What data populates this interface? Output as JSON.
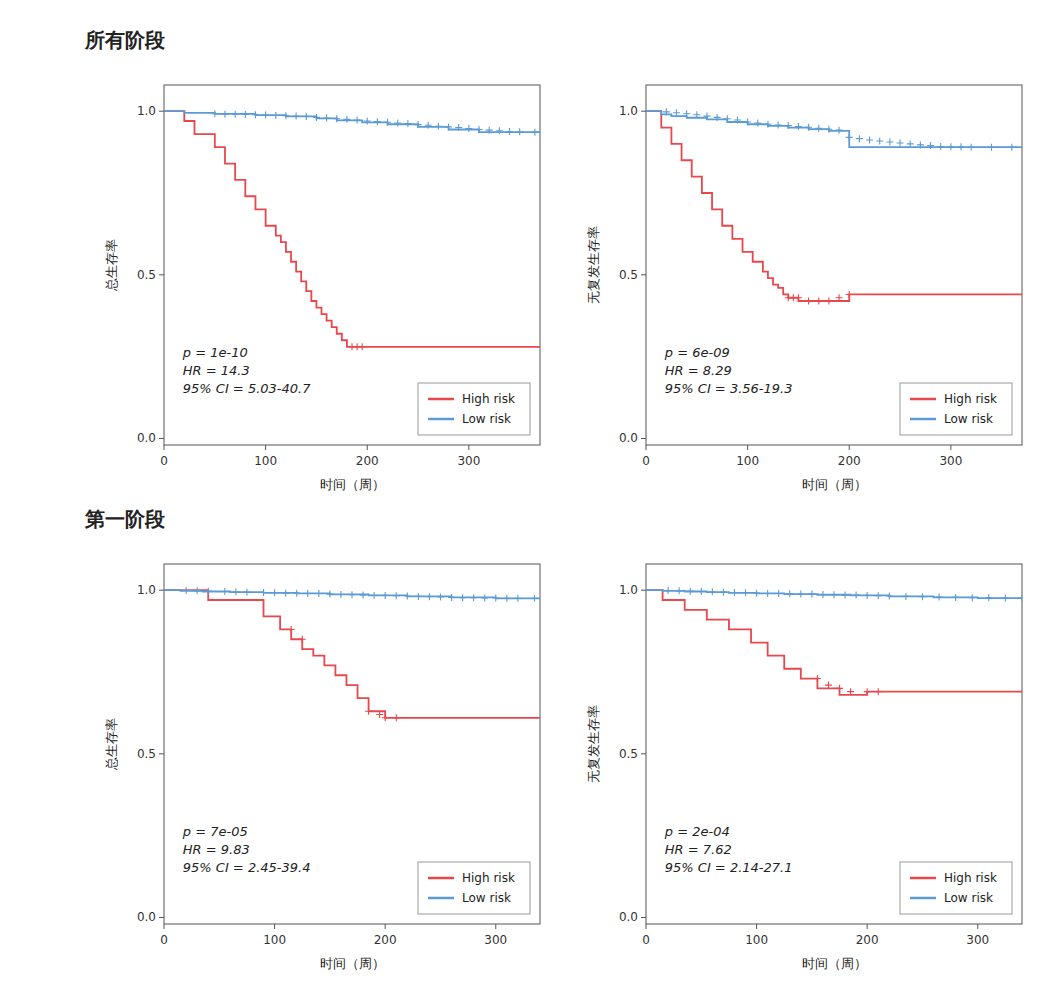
{
  "chart_data": [
    {
      "type": "step",
      "title": "所有阶段",
      "xlabel": "时间（周）",
      "ylabel": "总生存率",
      "annotations": [
        "p = 1e-10",
        "HR = 14.3",
        "95% CI = 5.03-40.7"
      ],
      "xlim": [
        0,
        370
      ],
      "ylim": [
        -0.02,
        1.08
      ],
      "xticks": [
        0,
        100,
        200,
        300
      ],
      "yticks": [
        {
          "value": 0.0,
          "label": "0.0"
        },
        0.5,
        {
          "value": 1.0,
          "label": "1.0"
        }
      ],
      "grid": false,
      "legend": "lower right",
      "series": [
        {
          "name": "High risk",
          "color": "#E8474C",
          "x": [
            0,
            20,
            20,
            30,
            30,
            50,
            50,
            60,
            60,
            70,
            70,
            80,
            80,
            90,
            90,
            100,
            100,
            110,
            110,
            115,
            115,
            120,
            120,
            125,
            125,
            130,
            130,
            135,
            135,
            140,
            140,
            145,
            145,
            150,
            150,
            155,
            155,
            160,
            160,
            165,
            165,
            170,
            170,
            175,
            175,
            180,
            180,
            185,
            185,
            190,
            190,
            200,
            200,
            370
          ],
          "values": [
            1.0,
            1.0,
            0.97,
            0.97,
            0.93,
            0.93,
            0.89,
            0.89,
            0.84,
            0.84,
            0.79,
            0.79,
            0.74,
            0.74,
            0.7,
            0.7,
            0.65,
            0.65,
            0.62,
            0.62,
            0.6,
            0.6,
            0.57,
            0.57,
            0.54,
            0.54,
            0.51,
            0.51,
            0.48,
            0.48,
            0.45,
            0.45,
            0.42,
            0.42,
            0.4,
            0.4,
            0.38,
            0.38,
            0.36,
            0.36,
            0.34,
            0.34,
            0.32,
            0.32,
            0.3,
            0.3,
            0.28,
            0.28,
            0.28,
            0.28,
            0.28,
            0.28,
            0.28,
            0.28
          ],
          "censor_x": [
            185,
            190,
            195
          ],
          "censor_values": [
            0.28,
            0.28,
            0.28
          ]
        },
        {
          "name": "Low risk",
          "color": "#5B9BD5",
          "x": [
            0,
            20,
            20,
            50,
            50,
            90,
            90,
            120,
            120,
            150,
            150,
            170,
            170,
            195,
            195,
            220,
            220,
            250,
            250,
            280,
            280,
            310,
            310,
            370
          ],
          "values": [
            1.0,
            1.0,
            0.995,
            0.995,
            0.992,
            0.992,
            0.988,
            0.988,
            0.984,
            0.984,
            0.978,
            0.978,
            0.972,
            0.972,
            0.966,
            0.966,
            0.96,
            0.96,
            0.952,
            0.952,
            0.944,
            0.944,
            0.936,
            0.936
          ],
          "censor_x": [
            50,
            60,
            70,
            80,
            90,
            100,
            110,
            120,
            130,
            140,
            150,
            160,
            170,
            180,
            190,
            200,
            210,
            220,
            230,
            240,
            250,
            260,
            270,
            280,
            290,
            300,
            310,
            320,
            330,
            340,
            350,
            365
          ],
          "censor_values": [
            0.992,
            0.991,
            0.991,
            0.99,
            0.989,
            0.988,
            0.987,
            0.986,
            0.985,
            0.984,
            0.981,
            0.979,
            0.977,
            0.975,
            0.973,
            0.97,
            0.968,
            0.966,
            0.964,
            0.962,
            0.959,
            0.957,
            0.954,
            0.952,
            0.95,
            0.947,
            0.944,
            0.942,
            0.94,
            0.938,
            0.937,
            0.936
          ]
        }
      ]
    },
    {
      "type": "step",
      "xlabel": "时间（周）",
      "ylabel": "无复发生存率",
      "annotations": [
        "p = 6e-09",
        "HR = 8.29",
        "95% CI = 3.56-19.3"
      ],
      "xlim": [
        0,
        370
      ],
      "ylim": [
        -0.02,
        1.08
      ],
      "xticks": [
        0,
        100,
        200,
        300
      ],
      "yticks": [
        {
          "value": 0.0,
          "label": "0.0"
        },
        0.5,
        {
          "value": 1.0,
          "label": "1.0"
        }
      ],
      "grid": false,
      "legend": "lower right",
      "series": [
        {
          "name": "High risk",
          "color": "#E8474C",
          "x": [
            0,
            15,
            15,
            25,
            25,
            35,
            35,
            45,
            45,
            55,
            55,
            65,
            65,
            75,
            75,
            85,
            85,
            95,
            95,
            105,
            105,
            115,
            115,
            120,
            120,
            125,
            125,
            130,
            130,
            135,
            135,
            140,
            140,
            150,
            150,
            160,
            160,
            200,
            200,
            370
          ],
          "values": [
            1.0,
            1.0,
            0.95,
            0.95,
            0.9,
            0.9,
            0.85,
            0.85,
            0.8,
            0.8,
            0.75,
            0.75,
            0.7,
            0.7,
            0.65,
            0.65,
            0.61,
            0.61,
            0.57,
            0.57,
            0.54,
            0.54,
            0.51,
            0.51,
            0.49,
            0.49,
            0.47,
            0.47,
            0.46,
            0.46,
            0.44,
            0.44,
            0.43,
            0.43,
            0.42,
            0.42,
            0.42,
            0.42,
            0.44,
            0.44
          ],
          "censor_x": [
            140,
            145,
            150,
            160,
            170,
            180,
            190,
            200
          ],
          "censor_values": [
            0.43,
            0.43,
            0.43,
            0.42,
            0.42,
            0.42,
            0.43,
            0.44
          ]
        },
        {
          "name": "Low risk",
          "color": "#5B9BD5",
          "x": [
            0,
            15,
            15,
            25,
            25,
            40,
            40,
            60,
            60,
            80,
            80,
            100,
            100,
            120,
            120,
            140,
            140,
            160,
            160,
            180,
            180,
            200,
            200,
            370
          ],
          "values": [
            1.0,
            1.0,
            0.99,
            0.99,
            0.985,
            0.985,
            0.98,
            0.98,
            0.975,
            0.975,
            0.967,
            0.967,
            0.96,
            0.96,
            0.955,
            0.955,
            0.95,
            0.95,
            0.945,
            0.945,
            0.94,
            0.94,
            0.89,
            0.89
          ],
          "censor_x": [
            20,
            30,
            40,
            50,
            60,
            70,
            80,
            90,
            100,
            110,
            120,
            130,
            140,
            150,
            160,
            170,
            180,
            190,
            200,
            210,
            220,
            230,
            240,
            250,
            260,
            270,
            280,
            290,
            300,
            310,
            320,
            340,
            360
          ],
          "censor_values": [
            0.998,
            0.995,
            0.992,
            0.989,
            0.985,
            0.981,
            0.977,
            0.973,
            0.967,
            0.964,
            0.96,
            0.958,
            0.956,
            0.953,
            0.951,
            0.948,
            0.945,
            0.942,
            0.92,
            0.916,
            0.912,
            0.909,
            0.906,
            0.903,
            0.9,
            0.897,
            0.895,
            0.892,
            0.891,
            0.891,
            0.89,
            0.89,
            0.89
          ]
        }
      ]
    },
    {
      "type": "step",
      "title": "第一阶段",
      "xlabel": "时间（周）",
      "ylabel": "总生存率",
      "annotations": [
        "p = 7e-05",
        "HR = 9.83",
        "95% CI = 2.45-39.4"
      ],
      "xlim": [
        0,
        340
      ],
      "ylim": [
        -0.02,
        1.08
      ],
      "xticks": [
        0,
        100,
        200,
        300
      ],
      "yticks": [
        {
          "value": 0.0,
          "label": "0.0"
        },
        0.5,
        {
          "value": 1.0,
          "label": "1.0"
        }
      ],
      "grid": false,
      "legend": "lower right",
      "series": [
        {
          "name": "High risk",
          "color": "#E8474C",
          "x": [
            0,
            40,
            40,
            90,
            90,
            105,
            105,
            115,
            115,
            125,
            125,
            135,
            135,
            145,
            145,
            155,
            155,
            165,
            165,
            175,
            175,
            185,
            185,
            200,
            200,
            340
          ],
          "values": [
            1.0,
            1.0,
            0.97,
            0.97,
            0.92,
            0.92,
            0.88,
            0.88,
            0.85,
            0.85,
            0.82,
            0.82,
            0.8,
            0.8,
            0.77,
            0.77,
            0.74,
            0.74,
            0.71,
            0.71,
            0.67,
            0.67,
            0.63,
            0.63,
            0.61,
            0.61
          ],
          "censor_x": [
            115,
            125,
            185,
            195,
            200,
            210
          ],
          "censor_values": [
            0.88,
            0.85,
            0.63,
            0.62,
            0.61,
            0.61
          ]
        },
        {
          "name": "Low risk",
          "color": "#5B9BD5",
          "x": [
            0,
            15,
            15,
            35,
            35,
            60,
            60,
            90,
            90,
            120,
            120,
            150,
            150,
            185,
            185,
            220,
            220,
            260,
            260,
            300,
            300,
            340
          ],
          "values": [
            1.0,
            1.0,
            0.998,
            0.998,
            0.996,
            0.996,
            0.994,
            0.994,
            0.992,
            0.992,
            0.99,
            0.99,
            0.987,
            0.987,
            0.984,
            0.984,
            0.981,
            0.981,
            0.978,
            0.978,
            0.975,
            0.975
          ],
          "censor_x": [
            20,
            30,
            40,
            55,
            65,
            75,
            90,
            100,
            110,
            120,
            130,
            140,
            150,
            160,
            170,
            180,
            190,
            200,
            210,
            220,
            230,
            240,
            250,
            260,
            270,
            280,
            290,
            300,
            310,
            320,
            335
          ],
          "censor_values": [
            0.999,
            0.998,
            0.997,
            0.996,
            0.995,
            0.994,
            0.993,
            0.992,
            0.991,
            0.991,
            0.99,
            0.99,
            0.988,
            0.987,
            0.986,
            0.985,
            0.984,
            0.984,
            0.983,
            0.982,
            0.981,
            0.98,
            0.979,
            0.978,
            0.977,
            0.977,
            0.976,
            0.976,
            0.975,
            0.975,
            0.975
          ]
        }
      ]
    },
    {
      "type": "step",
      "xlabel": "时间（周）",
      "ylabel": "无复发生存率",
      "annotations": [
        "p = 2e-04",
        "HR = 7.62",
        "95% CI = 2.14-27.1"
      ],
      "xlim": [
        0,
        340
      ],
      "ylim": [
        -0.02,
        1.08
      ],
      "xticks": [
        0,
        100,
        200,
        300
      ],
      "yticks": [
        {
          "value": 0.0,
          "label": "0.0"
        },
        0.5,
        {
          "value": 1.0,
          "label": "1.0"
        }
      ],
      "grid": false,
      "legend": "lower right",
      "series": [
        {
          "name": "High risk",
          "color": "#E8474C",
          "x": [
            0,
            15,
            15,
            35,
            35,
            55,
            55,
            75,
            75,
            95,
            95,
            110,
            110,
            125,
            125,
            140,
            140,
            155,
            155,
            175,
            175,
            200,
            200,
            340
          ],
          "values": [
            1.0,
            1.0,
            0.97,
            0.97,
            0.94,
            0.94,
            0.91,
            0.91,
            0.88,
            0.88,
            0.84,
            0.84,
            0.8,
            0.8,
            0.76,
            0.76,
            0.73,
            0.73,
            0.7,
            0.7,
            0.68,
            0.68,
            0.69,
            0.69
          ],
          "censor_x": [
            155,
            165,
            175,
            185,
            200,
            210
          ],
          "censor_values": [
            0.73,
            0.71,
            0.7,
            0.69,
            0.69,
            0.69
          ]
        },
        {
          "name": "Low risk",
          "color": "#5B9BD5",
          "x": [
            0,
            15,
            15,
            35,
            35,
            55,
            55,
            75,
            75,
            100,
            100,
            125,
            125,
            155,
            155,
            185,
            185,
            220,
            220,
            260,
            260,
            300,
            300,
            340
          ],
          "values": [
            1.0,
            1.0,
            0.998,
            0.998,
            0.996,
            0.996,
            0.994,
            0.994,
            0.992,
            0.992,
            0.99,
            0.99,
            0.988,
            0.988,
            0.986,
            0.986,
            0.984,
            0.984,
            0.981,
            0.981,
            0.978,
            0.978,
            0.976,
            0.976
          ],
          "censor_x": [
            20,
            30,
            40,
            50,
            60,
            70,
            80,
            90,
            100,
            110,
            120,
            130,
            140,
            150,
            160,
            170,
            180,
            190,
            200,
            210,
            220,
            235,
            250,
            265,
            280,
            295,
            310,
            325,
            340
          ],
          "censor_values": [
            0.999,
            0.998,
            0.997,
            0.996,
            0.995,
            0.994,
            0.993,
            0.992,
            0.991,
            0.99,
            0.99,
            0.989,
            0.988,
            0.988,
            0.987,
            0.986,
            0.985,
            0.985,
            0.984,
            0.983,
            0.982,
            0.981,
            0.98,
            0.979,
            0.978,
            0.977,
            0.977,
            0.976,
            0.976
          ]
        }
      ]
    }
  ]
}
